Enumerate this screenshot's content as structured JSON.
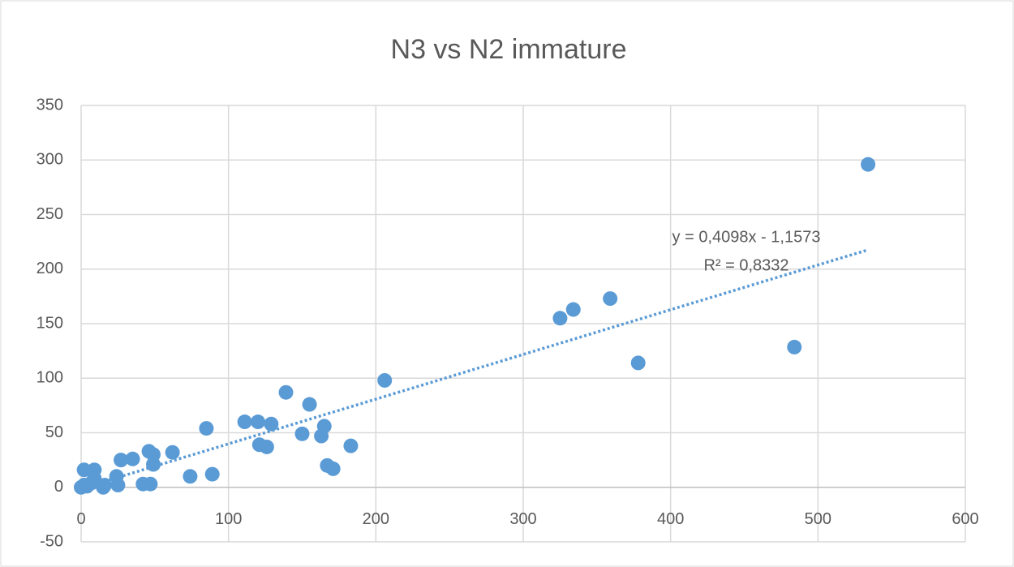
{
  "chart_data": {
    "type": "scatter",
    "title": "N3 vs N2 immature",
    "series": [
      {
        "color": "#5b9bd5",
        "x": [
          534,
          484,
          359,
          334,
          325,
          378,
          206,
          139,
          155,
          85,
          111,
          120,
          129,
          165,
          121,
          126,
          150,
          163,
          183,
          167,
          171,
          89,
          74,
          62,
          49,
          46,
          49,
          35,
          27,
          24,
          25,
          42,
          47,
          15,
          16,
          9,
          2,
          9,
          7,
          4,
          0,
          2
        ],
        "values": [
          296,
          128.5,
          173,
          163,
          155,
          114,
          98,
          87,
          76,
          54,
          60,
          60,
          58,
          56,
          39,
          37,
          49,
          47,
          38,
          20,
          17,
          12,
          10,
          32,
          21,
          33,
          30,
          26,
          25,
          10,
          2,
          3,
          3,
          0,
          2,
          16,
          16,
          8,
          4,
          1,
          0,
          2
        ]
      }
    ],
    "trendline": {
      "equation": "y = 0,4098x - 1,1573",
      "r2": "R² = 0,8332",
      "slope": 0.4098,
      "intercept": -1.1573,
      "color": "#5b9bd5"
    },
    "xlim": [
      0,
      600
    ],
    "xticks": [
      0,
      100,
      200,
      300,
      400,
      500,
      600
    ],
    "ylim": [
      -50,
      350
    ],
    "yticks": [
      -50,
      0,
      50,
      100,
      150,
      200,
      250,
      300,
      350
    ],
    "grid": true
  }
}
